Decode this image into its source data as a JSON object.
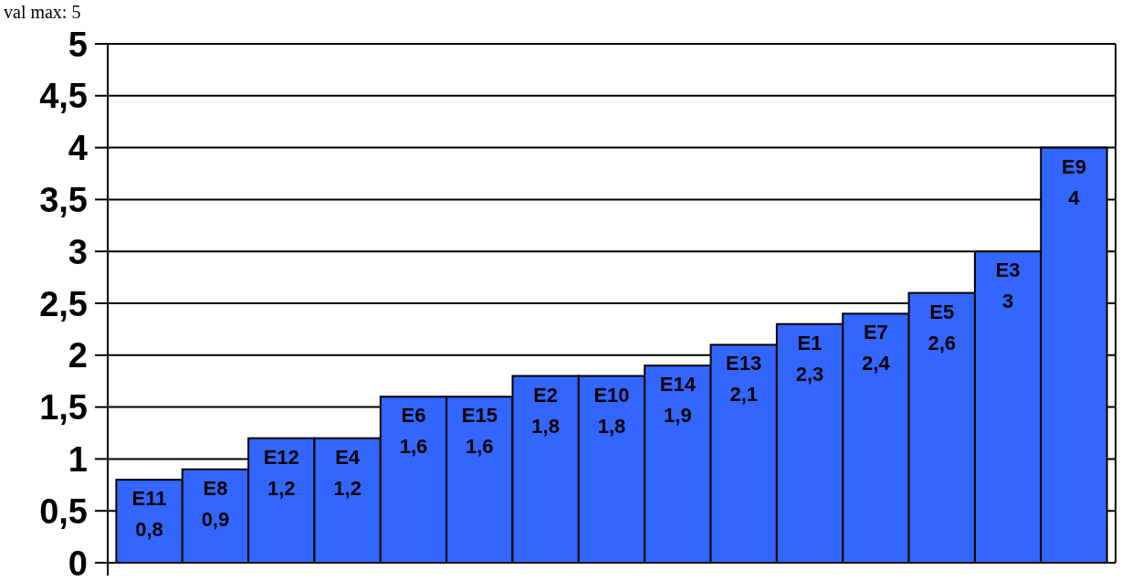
{
  "chart_data": {
    "type": "bar",
    "annotations": [
      "val max: 5"
    ],
    "categories": [
      "E11",
      "E8",
      "E12",
      "E4",
      "E6",
      "E15",
      "E2",
      "E10",
      "E14",
      "E13",
      "E1",
      "E7",
      "E5",
      "E3",
      "E9"
    ],
    "values": [
      0.8,
      0.9,
      1.2,
      1.2,
      1.6,
      1.6,
      1.8,
      1.8,
      1.9,
      2.1,
      2.3,
      2.4,
      2.6,
      3,
      4
    ],
    "value_labels": [
      "0,8",
      "0,9",
      "1,2",
      "1,2",
      "1,6",
      "1,6",
      "1,8",
      "1,8",
      "1,9",
      "2,1",
      "2,3",
      "2,4",
      "2,6",
      "3",
      "4"
    ],
    "color": "#3366ff",
    "ylim": [
      0,
      5
    ],
    "yticks": [
      0,
      {
        "value": 0.5,
        "label": "0,5"
      },
      1,
      {
        "value": 1.5,
        "label": "1,5"
      },
      2,
      {
        "value": 2.5,
        "label": "2,5"
      },
      3,
      {
        "value": 3.5,
        "label": "3,5"
      },
      4,
      {
        "value": 4.5,
        "label": "4,5"
      },
      5
    ],
    "grid": "y"
  }
}
